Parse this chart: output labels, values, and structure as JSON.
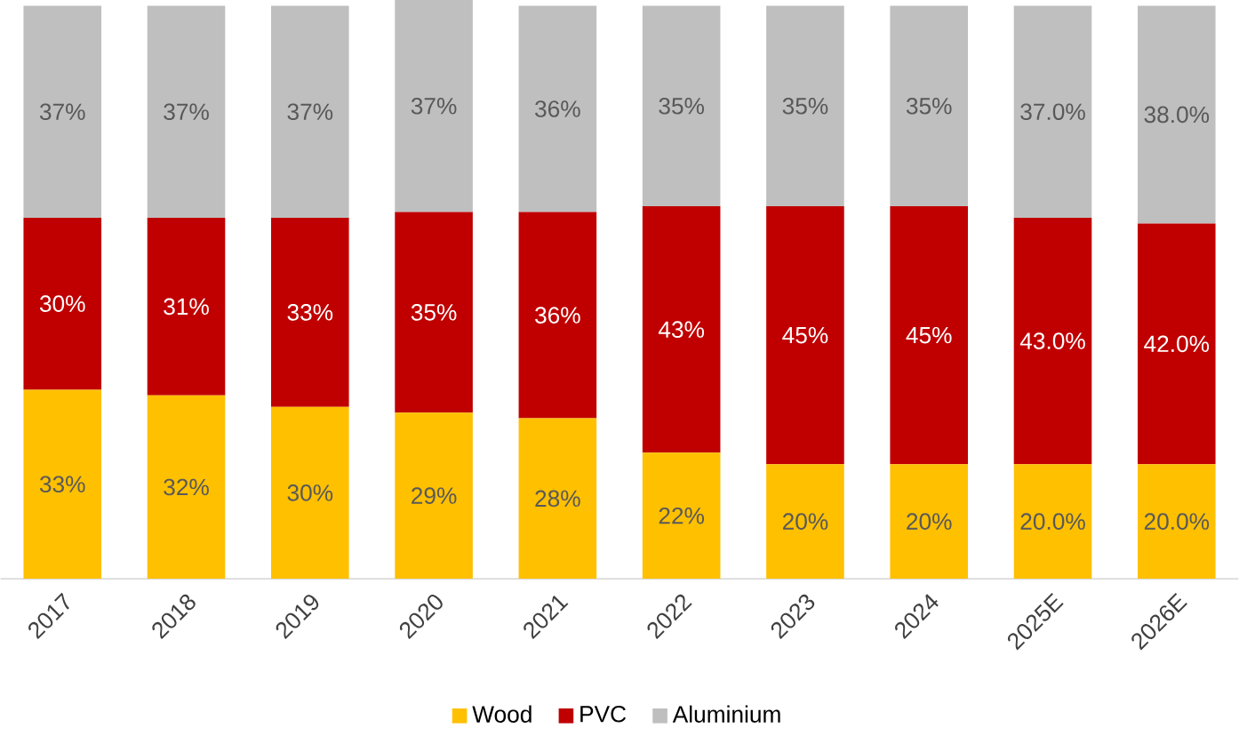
{
  "chart_data": {
    "type": "bar",
    "stacked": true,
    "legend": "bottom",
    "categories": [
      "2017",
      "2018",
      "2019",
      "2020",
      "2021",
      "2022",
      "2023",
      "2024",
      "2025E",
      "2026E"
    ],
    "series": [
      {
        "name": "Wood",
        "color": "#ffc000",
        "values": [
          33,
          32,
          30,
          29,
          28,
          22,
          20,
          20,
          20.0,
          20.0
        ],
        "value_labels": [
          "33%",
          "32%",
          "30%",
          "29%",
          "28%",
          "22%",
          "20%",
          "20%",
          "20.0%",
          "20.0%"
        ]
      },
      {
        "name": "PVC",
        "color": "#c00000",
        "values": [
          30,
          31,
          33,
          35,
          36,
          43,
          45,
          45,
          43.0,
          42.0
        ],
        "value_labels": [
          "30%",
          "31%",
          "33%",
          "35%",
          "36%",
          "43%",
          "45%",
          "45%",
          "43.0%",
          "42.0%"
        ]
      },
      {
        "name": "Aluminium",
        "color": "#bfbfbf",
        "values": [
          37,
          37,
          37,
          37,
          36,
          35,
          35,
          35,
          37.0,
          38.0
        ],
        "value_labels": [
          "37%",
          "37%",
          "37%",
          "37%",
          "36%",
          "35%",
          "35%",
          "35%",
          "37.0%",
          "38.0%"
        ]
      }
    ]
  }
}
